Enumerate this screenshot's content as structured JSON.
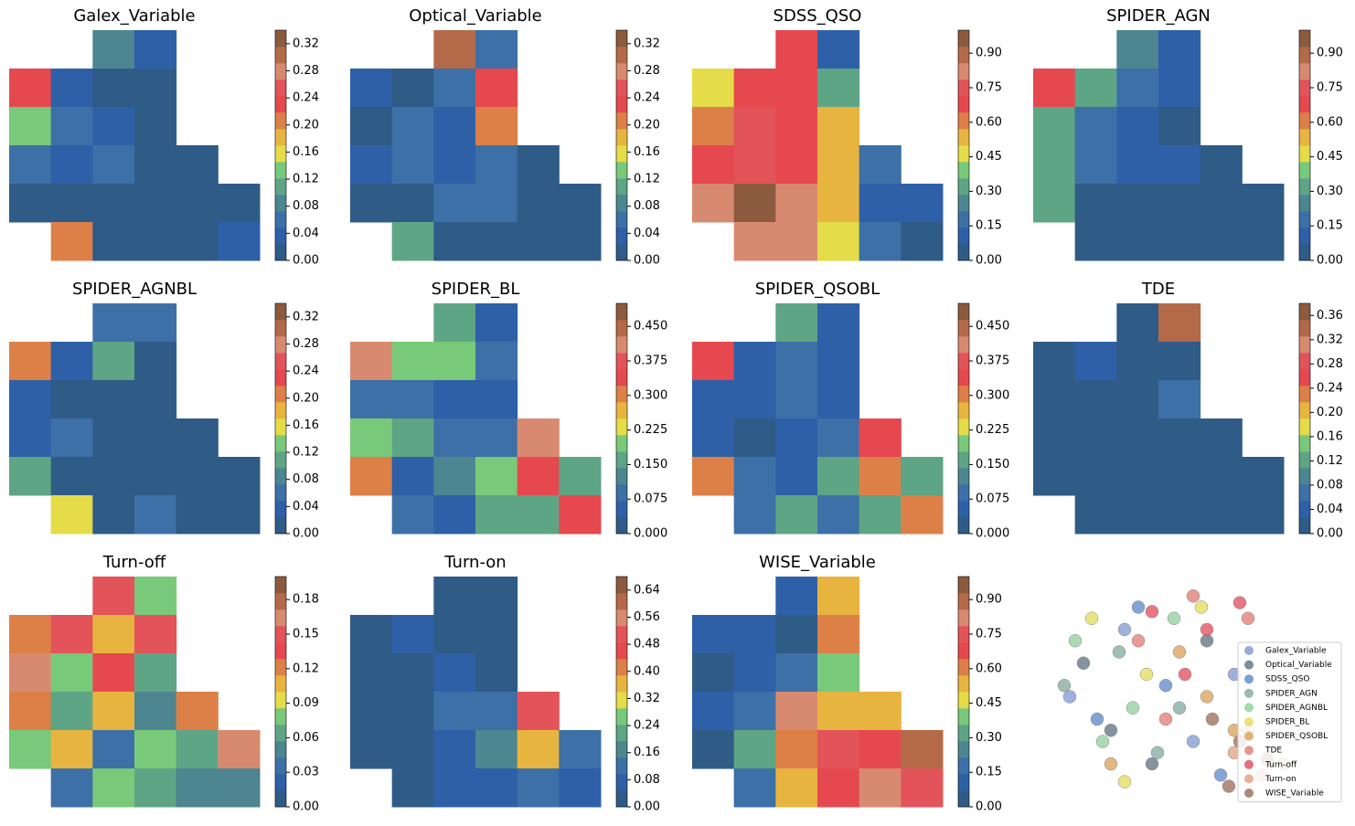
{
  "colormap": [
    "#2f5b87",
    "#2e60a8",
    "#3d70a6",
    "#4d8690",
    "#5ea586",
    "#79c97a",
    "#e4dc48",
    "#e8b440",
    "#dd8048",
    "#e6484f",
    "#e3535a",
    "#d88a70",
    "#b46a48",
    "#8c5a3e"
  ],
  "chart_data": [
    {
      "type": "contour",
      "title": "Galex_Variable",
      "zlim": [
        0,
        0.34
      ],
      "zticks": [
        {
          "value": 0,
          "label": "0.00"
        },
        {
          "value": 0.04,
          "label": "0.04"
        },
        {
          "value": 0.08,
          "label": "0.08"
        },
        {
          "value": 0.12,
          "label": "0.12"
        },
        {
          "value": 0.16,
          "label": "0.16"
        },
        {
          "value": 0.2,
          "label": "0.20"
        },
        {
          "value": 0.24,
          "label": "0.24"
        },
        {
          "value": 0.28,
          "label": "0.28"
        },
        {
          "value": 0.32,
          "label": "0.32"
        }
      ],
      "z": [
        [
          null,
          null,
          0.08,
          0.04,
          null,
          null
        ],
        [
          0.24,
          0.04,
          0.02,
          0.01,
          null,
          null
        ],
        [
          0.14,
          0.05,
          0.03,
          0.01,
          null,
          null
        ],
        [
          0.06,
          0.03,
          0.05,
          0.02,
          0.01,
          null
        ],
        [
          0.02,
          0.01,
          0.01,
          0.01,
          0.01,
          0.01
        ],
        [
          null,
          0.2,
          0.01,
          0.01,
          0.01,
          0.03
        ]
      ]
    },
    {
      "type": "contour",
      "title": "Optical_Variable",
      "zlim": [
        0,
        0.34
      ],
      "zticks": [
        {
          "value": 0,
          "label": "0.00"
        },
        {
          "value": 0.04,
          "label": "0.04"
        },
        {
          "value": 0.08,
          "label": "0.08"
        },
        {
          "value": 0.12,
          "label": "0.12"
        },
        {
          "value": 0.16,
          "label": "0.16"
        },
        {
          "value": 0.2,
          "label": "0.20"
        },
        {
          "value": 0.24,
          "label": "0.24"
        },
        {
          "value": 0.28,
          "label": "0.28"
        },
        {
          "value": 0.32,
          "label": "0.32"
        }
      ],
      "z": [
        [
          null,
          null,
          0.3,
          0.06,
          null,
          null
        ],
        [
          0.04,
          0.02,
          0.06,
          0.24,
          null,
          null
        ],
        [
          0.01,
          0.05,
          0.03,
          0.2,
          null,
          null
        ],
        [
          0.03,
          0.06,
          0.04,
          0.05,
          0.02,
          null
        ],
        [
          0.01,
          0.02,
          0.05,
          0.06,
          0.02,
          0.01
        ],
        [
          null,
          0.1,
          0.01,
          0.02,
          0.01,
          0.01
        ]
      ]
    },
    {
      "type": "contour",
      "title": "SDSS_QSO",
      "zlim": [
        0,
        1.0
      ],
      "zticks": [
        {
          "value": 0,
          "label": "0.00"
        },
        {
          "value": 0.15,
          "label": "0.15"
        },
        {
          "value": 0.3,
          "label": "0.30"
        },
        {
          "value": 0.45,
          "label": "0.45"
        },
        {
          "value": 0.6,
          "label": "0.60"
        },
        {
          "value": 0.75,
          "label": "0.75"
        },
        {
          "value": 0.9,
          "label": "0.90"
        }
      ],
      "z": [
        [
          null,
          null,
          0.65,
          0.1,
          null,
          null
        ],
        [
          0.45,
          0.65,
          0.7,
          0.35,
          null,
          null
        ],
        [
          0.6,
          0.75,
          0.7,
          0.5,
          null,
          null
        ],
        [
          0.7,
          0.75,
          0.7,
          0.55,
          0.15,
          null
        ],
        [
          0.8,
          0.95,
          0.8,
          0.5,
          0.1,
          0.1
        ],
        [
          null,
          0.8,
          0.85,
          0.45,
          0.2,
          0.05
        ]
      ]
    },
    {
      "type": "contour",
      "title": "SPIDER_AGN",
      "zlim": [
        0,
        1.0
      ],
      "zticks": [
        {
          "value": 0,
          "label": "0.00"
        },
        {
          "value": 0.15,
          "label": "0.15"
        },
        {
          "value": 0.3,
          "label": "0.30"
        },
        {
          "value": 0.45,
          "label": "0.45"
        },
        {
          "value": 0.6,
          "label": "0.60"
        },
        {
          "value": 0.75,
          "label": "0.75"
        },
        {
          "value": 0.9,
          "label": "0.90"
        }
      ],
      "z": [
        [
          null,
          null,
          0.25,
          0.1,
          null,
          null
        ],
        [
          0.7,
          0.3,
          0.15,
          0.1,
          null,
          null
        ],
        [
          0.3,
          0.2,
          0.1,
          0.05,
          null,
          null
        ],
        [
          0.35,
          0.15,
          0.1,
          0.1,
          0.05,
          null
        ],
        [
          0.3,
          0.05,
          0.05,
          0.05,
          0.03,
          0.02
        ],
        [
          null,
          0.05,
          0.03,
          0.03,
          0.02,
          0.02
        ]
      ]
    },
    {
      "type": "contour",
      "title": "SPIDER_AGNBL",
      "zlim": [
        0,
        0.34
      ],
      "zticks": [
        {
          "value": 0,
          "label": "0.00"
        },
        {
          "value": 0.04,
          "label": "0.04"
        },
        {
          "value": 0.08,
          "label": "0.08"
        },
        {
          "value": 0.12,
          "label": "0.12"
        },
        {
          "value": 0.16,
          "label": "0.16"
        },
        {
          "value": 0.2,
          "label": "0.20"
        },
        {
          "value": 0.24,
          "label": "0.24"
        },
        {
          "value": 0.28,
          "label": "0.28"
        },
        {
          "value": 0.32,
          "label": "0.32"
        }
      ],
      "z": [
        [
          null,
          null,
          0.05,
          0.06,
          null,
          null
        ],
        [
          0.2,
          0.03,
          0.1,
          0.02,
          null,
          null
        ],
        [
          0.03,
          0.02,
          0.01,
          0.01,
          null,
          null
        ],
        [
          0.03,
          0.05,
          0.02,
          0.01,
          0.01,
          null
        ],
        [
          0.12,
          0.02,
          0.01,
          0.01,
          0.01,
          0.01
        ],
        [
          null,
          0.15,
          0.02,
          0.05,
          0.01,
          0.01
        ]
      ]
    },
    {
      "type": "contour",
      "title": "SPIDER_BL",
      "zlim": [
        0,
        0.5
      ],
      "zticks": [
        {
          "value": 0,
          "label": "0.000"
        },
        {
          "value": 0.075,
          "label": "0.075"
        },
        {
          "value": 0.15,
          "label": "0.150"
        },
        {
          "value": 0.225,
          "label": "0.225"
        },
        {
          "value": 0.3,
          "label": "0.300"
        },
        {
          "value": 0.375,
          "label": "0.375"
        },
        {
          "value": 0.45,
          "label": "0.450"
        }
      ],
      "z": [
        [
          null,
          null,
          0.15,
          0.05,
          null,
          null
        ],
        [
          0.4,
          0.2,
          0.2,
          0.1,
          null,
          null
        ],
        [
          0.1,
          0.1,
          0.05,
          0.05,
          null,
          null
        ],
        [
          0.2,
          0.15,
          0.1,
          0.1,
          0.4,
          null
        ],
        [
          0.3,
          0.05,
          0.12,
          0.2,
          0.35,
          0.15
        ],
        [
          null,
          0.1,
          0.05,
          0.15,
          0.15,
          0.35
        ]
      ]
    },
    {
      "type": "contour",
      "title": "SPIDER_QSOBL",
      "zlim": [
        0,
        0.5
      ],
      "zticks": [
        {
          "value": 0,
          "label": "0.000"
        },
        {
          "value": 0.075,
          "label": "0.075"
        },
        {
          "value": 0.15,
          "label": "0.150"
        },
        {
          "value": 0.225,
          "label": "0.225"
        },
        {
          "value": 0.3,
          "label": "0.300"
        },
        {
          "value": 0.375,
          "label": "0.375"
        },
        {
          "value": 0.45,
          "label": "0.450"
        }
      ],
      "z": [
        [
          null,
          null,
          0.15,
          0.05,
          null,
          null
        ],
        [
          0.35,
          0.05,
          0.1,
          0.05,
          null,
          null
        ],
        [
          0.05,
          0.05,
          0.1,
          0.05,
          null,
          null
        ],
        [
          0.05,
          0.02,
          0.05,
          0.1,
          0.35,
          null
        ],
        [
          0.3,
          0.1,
          0.05,
          0.15,
          0.3,
          0.15
        ],
        [
          null,
          0.1,
          0.15,
          0.1,
          0.15,
          0.3
        ]
      ]
    },
    {
      "type": "contour",
      "title": "TDE",
      "zlim": [
        0,
        0.38
      ],
      "zticks": [
        {
          "value": 0,
          "label": "0.00"
        },
        {
          "value": 0.04,
          "label": "0.04"
        },
        {
          "value": 0.08,
          "label": "0.08"
        },
        {
          "value": 0.12,
          "label": "0.12"
        },
        {
          "value": 0.16,
          "label": "0.16"
        },
        {
          "value": 0.2,
          "label": "0.20"
        },
        {
          "value": 0.24,
          "label": "0.24"
        },
        {
          "value": 0.28,
          "label": "0.28"
        },
        {
          "value": 0.32,
          "label": "0.32"
        },
        {
          "value": 0.36,
          "label": "0.36"
        }
      ],
      "z": [
        [
          null,
          null,
          0.02,
          0.35,
          null,
          null
        ],
        [
          0.01,
          0.03,
          0.02,
          0.02,
          null,
          null
        ],
        [
          0.01,
          0.01,
          0.02,
          0.08,
          null,
          null
        ],
        [
          0.01,
          0.02,
          0.01,
          0.01,
          0.01,
          null
        ],
        [
          0.01,
          0.01,
          0.01,
          0.01,
          0.01,
          0.01
        ],
        [
          null,
          0.01,
          0.01,
          0.01,
          0.01,
          0.01
        ]
      ]
    },
    {
      "type": "contour",
      "title": "Turn-off",
      "zlim": [
        0,
        0.2
      ],
      "zticks": [
        {
          "value": 0,
          "label": "0.00"
        },
        {
          "value": 0.03,
          "label": "0.03"
        },
        {
          "value": 0.06,
          "label": "0.06"
        },
        {
          "value": 0.09,
          "label": "0.09"
        },
        {
          "value": 0.12,
          "label": "0.12"
        },
        {
          "value": 0.15,
          "label": "0.15"
        },
        {
          "value": 0.18,
          "label": "0.18"
        }
      ],
      "z": [
        [
          null,
          null,
          0.15,
          0.08,
          null,
          null
        ],
        [
          0.12,
          0.15,
          0.1,
          0.15,
          null,
          null
        ],
        [
          0.16,
          0.08,
          0.14,
          0.06,
          null,
          null
        ],
        [
          0.12,
          0.06,
          0.1,
          0.05,
          0.12,
          null
        ],
        [
          0.08,
          0.1,
          0.04,
          0.08,
          0.07,
          0.16
        ],
        [
          null,
          0.04,
          0.08,
          0.06,
          0.05,
          0.05
        ]
      ]
    },
    {
      "type": "contour",
      "title": "Turn-on",
      "zlim": [
        0,
        0.68
      ],
      "zticks": [
        {
          "value": 0,
          "label": "0.00"
        },
        {
          "value": 0.08,
          "label": "0.08"
        },
        {
          "value": 0.16,
          "label": "0.16"
        },
        {
          "value": 0.24,
          "label": "0.24"
        },
        {
          "value": 0.32,
          "label": "0.32"
        },
        {
          "value": 0.4,
          "label": "0.40"
        },
        {
          "value": 0.48,
          "label": "0.48"
        },
        {
          "value": 0.56,
          "label": "0.56"
        },
        {
          "value": 0.64,
          "label": "0.64"
        }
      ],
      "z": [
        [
          null,
          null,
          0.02,
          0.01,
          null,
          null
        ],
        [
          0.01,
          0.05,
          0.02,
          0.01,
          null,
          null
        ],
        [
          0.01,
          0.03,
          0.05,
          0.04,
          null,
          null
        ],
        [
          0.01,
          0.02,
          0.1,
          0.12,
          0.5,
          null
        ],
        [
          0.01,
          0.02,
          0.05,
          0.15,
          0.35,
          0.1
        ],
        [
          null,
          0.02,
          0.05,
          0.05,
          0.1,
          0.05
        ]
      ]
    },
    {
      "type": "contour",
      "title": "WISE_Variable",
      "zlim": [
        0,
        1.0
      ],
      "zticks": [
        {
          "value": 0,
          "label": "0.00"
        },
        {
          "value": 0.15,
          "label": "0.15"
        },
        {
          "value": 0.3,
          "label": "0.30"
        },
        {
          "value": 0.45,
          "label": "0.45"
        },
        {
          "value": 0.6,
          "label": "0.60"
        },
        {
          "value": 0.75,
          "label": "0.75"
        },
        {
          "value": 0.9,
          "label": "0.90"
        }
      ],
      "z": [
        [
          null,
          null,
          0.1,
          0.5,
          null,
          null
        ],
        [
          0.1,
          0.1,
          0.05,
          0.6,
          null,
          null
        ],
        [
          0.05,
          0.1,
          0.2,
          0.4,
          null,
          null
        ],
        [
          0.1,
          0.2,
          0.8,
          0.55,
          0.5,
          null
        ],
        [
          0.05,
          0.3,
          0.6,
          0.75,
          0.7,
          0.9
        ],
        [
          null,
          0.15,
          0.5,
          0.65,
          0.8,
          0.75
        ]
      ]
    },
    {
      "type": "scatter",
      "xlim": [
        0,
        100
      ],
      "ylim": [
        0,
        100
      ],
      "series": [
        {
          "name": "Galex_Variable",
          "color": "#7f95d0",
          "x": [
            10,
            30,
            55,
            70
          ],
          "y": [
            50,
            80,
            30,
            60
          ]
        },
        {
          "name": "Optical_Variable",
          "color": "#5c6f80",
          "x": [
            15,
            40,
            60,
            25
          ],
          "y": [
            65,
            20,
            75,
            35
          ]
        },
        {
          "name": "SDSS_QSO",
          "color": "#5b87c5",
          "x": [
            20,
            45,
            65,
            35
          ],
          "y": [
            40,
            55,
            15,
            90
          ]
        },
        {
          "name": "SPIDER_AGN",
          "color": "#7fa89e",
          "x": [
            8,
            28,
            50,
            42
          ],
          "y": [
            55,
            70,
            45,
            25
          ]
        },
        {
          "name": "SPIDER_AGNBL",
          "color": "#8fcf9a",
          "x": [
            12,
            33,
            48,
            22
          ],
          "y": [
            75,
            45,
            85,
            30
          ]
        },
        {
          "name": "SPIDER_BL",
          "color": "#e2dc5a",
          "x": [
            18,
            38,
            58,
            30
          ],
          "y": [
            85,
            60,
            90,
            12
          ]
        },
        {
          "name": "SPIDER_QSOBL",
          "color": "#d8a055",
          "x": [
            25,
            50,
            70,
            60
          ],
          "y": [
            20,
            70,
            35,
            50
          ]
        },
        {
          "name": "TDE",
          "color": "#e07a70",
          "x": [
            35,
            55,
            75,
            45
          ],
          "y": [
            75,
            95,
            85,
            40
          ]
        },
        {
          "name": "Turn-off",
          "color": "#e04a5a",
          "x": [
            40,
            60,
            72,
            52
          ],
          "y": [
            88,
            80,
            92,
            60
          ]
        },
        {
          "name": "Turn-on",
          "color": "#e0a080",
          "x": [
            70,
            80,
            88,
            75
          ],
          "y": [
            25,
            15,
            20,
            35
          ]
        },
        {
          "name": "WISE_Variable",
          "color": "#9a6a55",
          "x": [
            62,
            72,
            82,
            68
          ],
          "y": [
            40,
            30,
            22,
            10
          ]
        }
      ]
    }
  ]
}
